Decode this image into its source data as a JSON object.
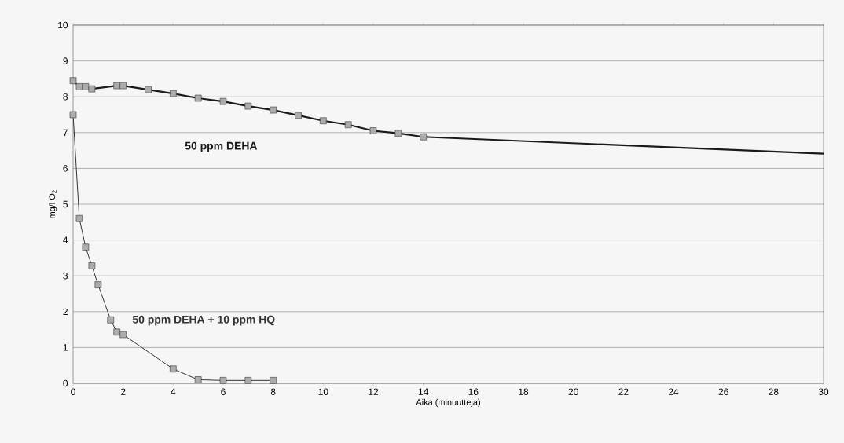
{
  "chart_data": {
    "type": "line",
    "xlabel": "Aika (minuutteja)",
    "ylabel": "mg/l O$_{2}$",
    "xlim": [
      0,
      30
    ],
    "ylim": [
      0,
      10
    ],
    "xticks": [
      0,
      2,
      4,
      6,
      8,
      10,
      12,
      14,
      16,
      18,
      20,
      22,
      24,
      26,
      28,
      30
    ],
    "yticks": [
      0,
      1,
      2,
      3,
      4,
      5,
      6,
      7,
      8,
      9,
      10
    ],
    "grid": "y",
    "marker": "square",
    "series": [
      {
        "name": "50 ppm DEHA",
        "color": "#1a1a1a",
        "x": [
          0,
          0.25,
          0.5,
          0.75,
          1.75,
          2,
          3,
          4,
          5,
          6,
          7,
          8,
          9,
          10,
          11,
          12,
          13,
          14
        ],
        "values": [
          8.45,
          8.28,
          8.28,
          8.22,
          8.31,
          8.31,
          8.2,
          8.09,
          7.96,
          7.87,
          7.74,
          7.63,
          7.48,
          7.33,
          7.22,
          7.05,
          6.98,
          6.88
        ]
      },
      {
        "color": "#1a1a1a",
        "marker": "none",
        "x": [
          14,
          30
        ],
        "values": [
          6.88,
          6.41
        ]
      },
      {
        "name": "50 ppm DEHA + 10 ppm HQ",
        "color": "#333333",
        "x": [
          0,
          0.25,
          0.5,
          0.75,
          1,
          1.5,
          1.75,
          2,
          4,
          5,
          6,
          7,
          8
        ],
        "values": [
          7.5,
          4.6,
          3.8,
          3.28,
          2.75,
          1.77,
          1.43,
          1.36,
          0.4,
          0.1,
          0.08,
          0.08,
          0.08
        ]
      }
    ]
  }
}
